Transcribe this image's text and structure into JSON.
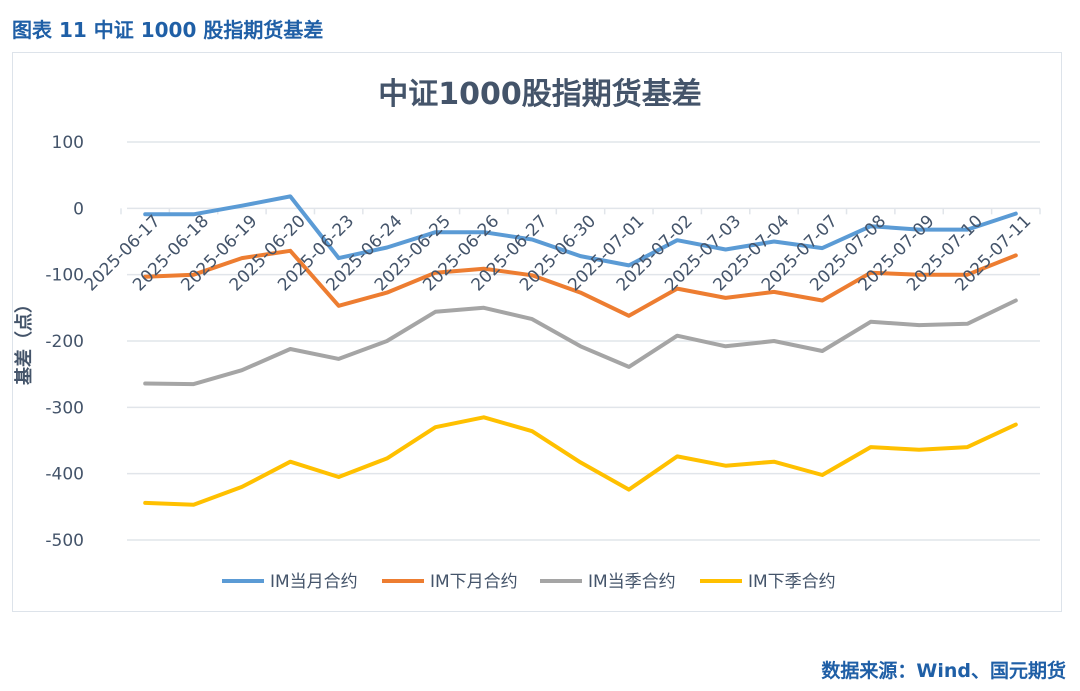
{
  "figure_title": "图表 11  中证 1000 股指期货基差",
  "source": "数据来源：Wind、国元期货",
  "chart_data": {
    "type": "line",
    "title": "中证1000股指期货基差",
    "xlabel": "",
    "ylabel": "基差（点）",
    "ylim": [
      -500,
      100
    ],
    "yticks": [
      100,
      0,
      -100,
      -200,
      -300,
      -400,
      -500
    ],
    "grid": true,
    "legend_position": "bottom",
    "categories": [
      "2025-06-17",
      "2025-06-18",
      "2025-06-19",
      "2025-06-20",
      "2025-06-23",
      "2025-06-24",
      "2025-06-25",
      "2025-06-26",
      "2025-06-27",
      "2025-06-30",
      "2025-07-01",
      "2025-07-02",
      "2025-07-03",
      "2025-07-04",
      "2025-07-07",
      "2025-07-08",
      "2025-07-09",
      "2025-07-10",
      "2025-07-11"
    ],
    "series": [
      {
        "name": "IM当月合约",
        "color": "#5b9bd5",
        "values": [
          -9,
          -9,
          4,
          18,
          -75,
          -59,
          -36,
          -36,
          -47,
          -72,
          -86,
          -48,
          -62,
          -50,
          -60,
          -27,
          -32,
          -32,
          -8
        ]
      },
      {
        "name": "IM下月合约",
        "color": "#ed7d31",
        "values": [
          -103,
          -100,
          -75,
          -64,
          -147,
          -127,
          -97,
          -91,
          -101,
          -127,
          -162,
          -121,
          -135,
          -126,
          -139,
          -97,
          -100,
          -100,
          -71
        ]
      },
      {
        "name": "IM当季合约",
        "color": "#a5a5a5",
        "values": [
          -264,
          -265,
          -244,
          -212,
          -227,
          -200,
          -156,
          -150,
          -167,
          -208,
          -239,
          -192,
          -208,
          -200,
          -215,
          -171,
          -176,
          -174,
          -139
        ]
      },
      {
        "name": "IM下季合约",
        "color": "#ffc000",
        "values": [
          -444,
          -447,
          -420,
          -382,
          -405,
          -377,
          -330,
          -315,
          -336,
          -383,
          -424,
          -374,
          -388,
          -382,
          -402,
          -360,
          -364,
          -360,
          -326
        ]
      }
    ]
  }
}
